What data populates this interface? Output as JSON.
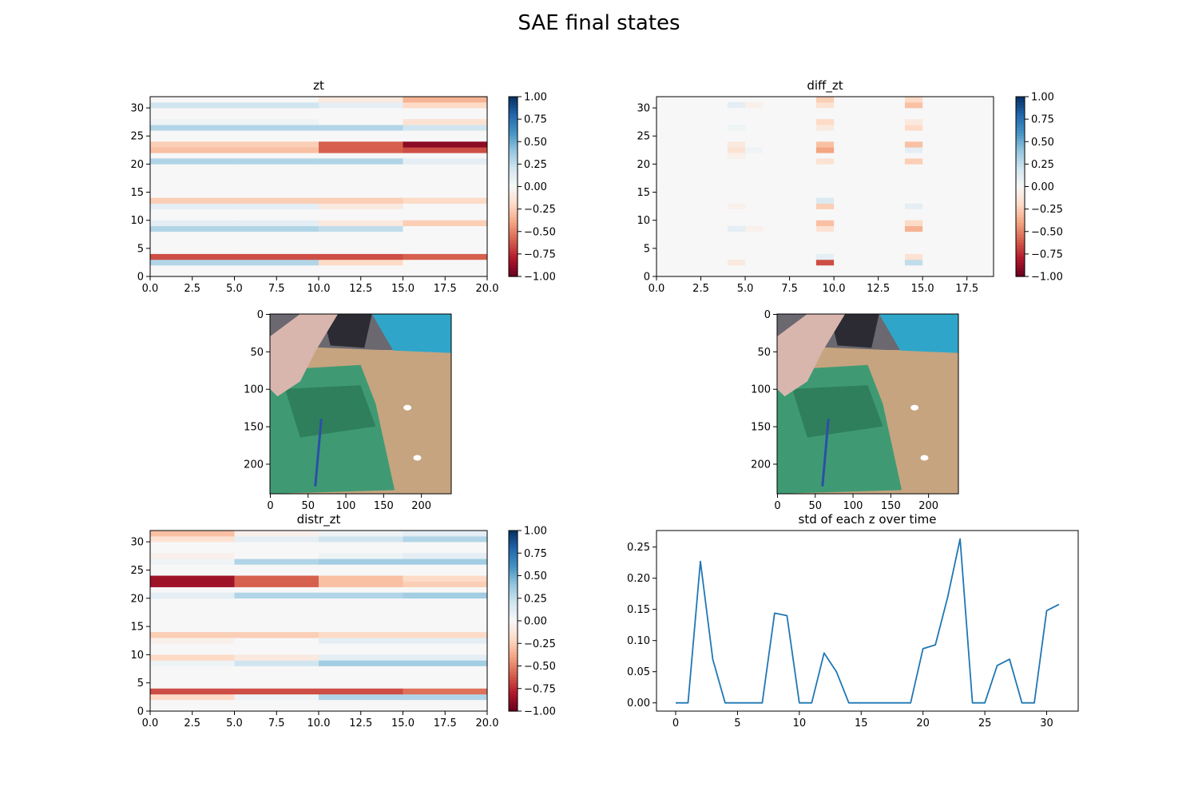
{
  "figure_title": "SAE final states",
  "chart_data": [
    {
      "type": "heatmap",
      "id": "zt",
      "title": "zt",
      "xlim": [
        0,
        20
      ],
      "ylim": [
        0,
        32
      ],
      "xticks": [
        "0.0",
        "2.5",
        "5.0",
        "7.5",
        "10.0",
        "12.5",
        "15.0",
        "17.5",
        "20.0"
      ],
      "yticks": [
        "0",
        "5",
        "10",
        "15",
        "20",
        "25",
        "30"
      ],
      "colorbar": {
        "ticks": [
          "−1.00",
          "−0.75",
          "−0.50",
          "−0.25",
          "0.00",
          "0.25",
          "0.50",
          "0.75",
          "1.00"
        ],
        "range": [
          -1,
          1
        ],
        "cmap": "RdBu"
      },
      "column_groups": [
        0,
        5,
        10,
        15,
        20
      ],
      "rows": {
        "2": [
          0.3,
          0.3,
          -0.2,
          0.0
        ],
        "3": [
          -0.65,
          -0.65,
          -0.65,
          -0.6
        ],
        "8": [
          0.3,
          0.3,
          0.25,
          0.0
        ],
        "9": [
          0.1,
          0.1,
          -0.1,
          -0.25
        ],
        "12": [
          0.1,
          0.1,
          -0.1,
          0.0
        ],
        "13": [
          -0.25,
          -0.25,
          -0.25,
          -0.2
        ],
        "20": [
          0.3,
          0.3,
          0.3,
          0.1
        ],
        "22": [
          -0.3,
          -0.3,
          -0.6,
          -0.65
        ],
        "23": [
          -0.25,
          -0.25,
          -0.6,
          -0.9
        ],
        "26": [
          0.3,
          0.3,
          0.3,
          0.2
        ],
        "27": [
          0.05,
          0.05,
          0.0,
          -0.15
        ],
        "30": [
          0.2,
          0.2,
          0.1,
          -0.2
        ],
        "31": [
          0.0,
          0.0,
          -0.1,
          -0.35
        ]
      }
    },
    {
      "type": "heatmap",
      "id": "diff_zt",
      "title": "diff_zt",
      "xlim": [
        0,
        19
      ],
      "ylim": [
        0,
        32
      ],
      "xticks": [
        "0.0",
        "2.5",
        "5.0",
        "7.5",
        "10.0",
        "12.5",
        "15.0",
        "17.5"
      ],
      "yticks": [
        "0",
        "5",
        "10",
        "15",
        "20",
        "25",
        "30"
      ],
      "colorbar": {
        "ticks": [
          "−1.00",
          "−0.75",
          "−0.50",
          "−0.25",
          "0.00",
          "0.25",
          "0.50",
          "0.75",
          "1.00"
        ],
        "range": [
          -1,
          1
        ],
        "cmap": "RdBu"
      },
      "cells": [
        [
          9,
          2,
          -0.65
        ],
        [
          9,
          3,
          0.1
        ],
        [
          14,
          2,
          0.25
        ],
        [
          14,
          3,
          -0.15
        ],
        [
          4,
          2,
          -0.1
        ],
        [
          9,
          8,
          -0.15
        ],
        [
          9,
          9,
          -0.3
        ],
        [
          14,
          8,
          -0.35
        ],
        [
          14,
          9,
          -0.2
        ],
        [
          4,
          8,
          0.1
        ],
        [
          5,
          8,
          -0.05
        ],
        [
          9,
          12,
          -0.25
        ],
        [
          9,
          13,
          0.15
        ],
        [
          14,
          12,
          0.1
        ],
        [
          4,
          12,
          -0.05
        ],
        [
          9,
          20,
          -0.15
        ],
        [
          14,
          20,
          -0.25
        ],
        [
          4,
          21,
          -0.05
        ],
        [
          9,
          22,
          -0.4
        ],
        [
          9,
          23,
          -0.3
        ],
        [
          14,
          22,
          0.1
        ],
        [
          14,
          23,
          -0.3
        ],
        [
          4,
          22,
          -0.15
        ],
        [
          4,
          23,
          -0.1
        ],
        [
          5,
          22,
          0.05
        ],
        [
          9,
          26,
          -0.1
        ],
        [
          9,
          27,
          -0.2
        ],
        [
          14,
          26,
          -0.2
        ],
        [
          14,
          27,
          -0.1
        ],
        [
          4,
          26,
          0.05
        ],
        [
          9,
          30,
          -0.15
        ],
        [
          9,
          31,
          -0.25
        ],
        [
          14,
          30,
          -0.3
        ],
        [
          14,
          31,
          -0.2
        ],
        [
          4,
          30,
          0.1
        ],
        [
          5,
          30,
          -0.05
        ]
      ]
    },
    {
      "type": "heatmap",
      "id": "distr_zt",
      "title": "distr_zt",
      "xlim": [
        0,
        20
      ],
      "ylim": [
        0,
        32
      ],
      "xticks": [
        "0.0",
        "2.5",
        "5.0",
        "7.5",
        "10.0",
        "12.5",
        "15.0",
        "17.5",
        "20.0"
      ],
      "yticks": [
        "0",
        "5",
        "10",
        "15",
        "20",
        "25",
        "30"
      ],
      "colorbar": {
        "ticks": [
          "−1.00",
          "−0.75",
          "−0.50",
          "−0.25",
          "0.00",
          "0.25",
          "0.50",
          "0.75",
          "1.00"
        ],
        "range": [
          -1,
          1
        ],
        "cmap": "RdBu"
      },
      "column_groups": [
        0,
        5,
        10,
        15,
        20
      ],
      "rows": {
        "2": [
          -0.2,
          0.05,
          0.3,
          0.3
        ],
        "3": [
          -0.65,
          -0.65,
          -0.65,
          -0.55
        ],
        "8": [
          0.05,
          0.2,
          0.35,
          0.35
        ],
        "9": [
          -0.2,
          -0.1,
          0.1,
          0.1
        ],
        "12": [
          -0.05,
          0.0,
          0.1,
          0.1
        ],
        "13": [
          -0.25,
          -0.25,
          -0.2,
          -0.2
        ],
        "20": [
          0.1,
          0.3,
          0.3,
          0.35
        ],
        "22": [
          -0.85,
          -0.6,
          -0.3,
          -0.25
        ],
        "23": [
          -0.85,
          -0.6,
          -0.3,
          -0.2
        ],
        "26": [
          0.05,
          0.3,
          0.35,
          0.35
        ],
        "27": [
          -0.05,
          0.0,
          0.05,
          0.1
        ],
        "30": [
          -0.15,
          0.1,
          0.2,
          0.3
        ],
        "31": [
          -0.3,
          -0.05,
          0.05,
          0.1
        ]
      }
    },
    {
      "type": "line",
      "id": "std",
      "title": "std of each z over time",
      "xlim": [
        -1.55,
        32.55
      ],
      "ylim": [
        -0.0132,
        0.2765
      ],
      "xticks": [
        0,
        5,
        10,
        15,
        20,
        25,
        30
      ],
      "yticks": [
        "0.00",
        "0.05",
        "0.10",
        "0.15",
        "0.20",
        "0.25"
      ],
      "color": "#1f77b4",
      "x": [
        0,
        1,
        2,
        3,
        4,
        5,
        6,
        7,
        8,
        9,
        10,
        11,
        12,
        13,
        14,
        15,
        16,
        17,
        18,
        19,
        20,
        21,
        22,
        23,
        24,
        25,
        26,
        27,
        28,
        29,
        30,
        31
      ],
      "y": [
        0,
        0,
        0.227,
        0.07,
        0,
        0,
        0,
        0,
        0.144,
        0.14,
        0,
        0,
        0.08,
        0.05,
        0,
        0,
        0,
        0,
        0,
        0,
        0.087,
        0.093,
        0.17,
        0.263,
        0,
        0,
        0.06,
        0.07,
        0,
        0,
        0.148,
        0.158
      ]
    }
  ],
  "images": [
    {
      "id": "frame-left",
      "xticks": [
        "0",
        "50",
        "100",
        "150",
        "200"
      ],
      "yticks": [
        "0",
        "50",
        "100",
        "150",
        "200"
      ],
      "extent": [
        240,
        240
      ]
    },
    {
      "id": "frame-right",
      "xticks": [
        "0",
        "50",
        "100",
        "150",
        "200"
      ],
      "yticks": [
        "0",
        "50",
        "100",
        "150",
        "200"
      ],
      "extent": [
        240,
        240
      ]
    }
  ]
}
